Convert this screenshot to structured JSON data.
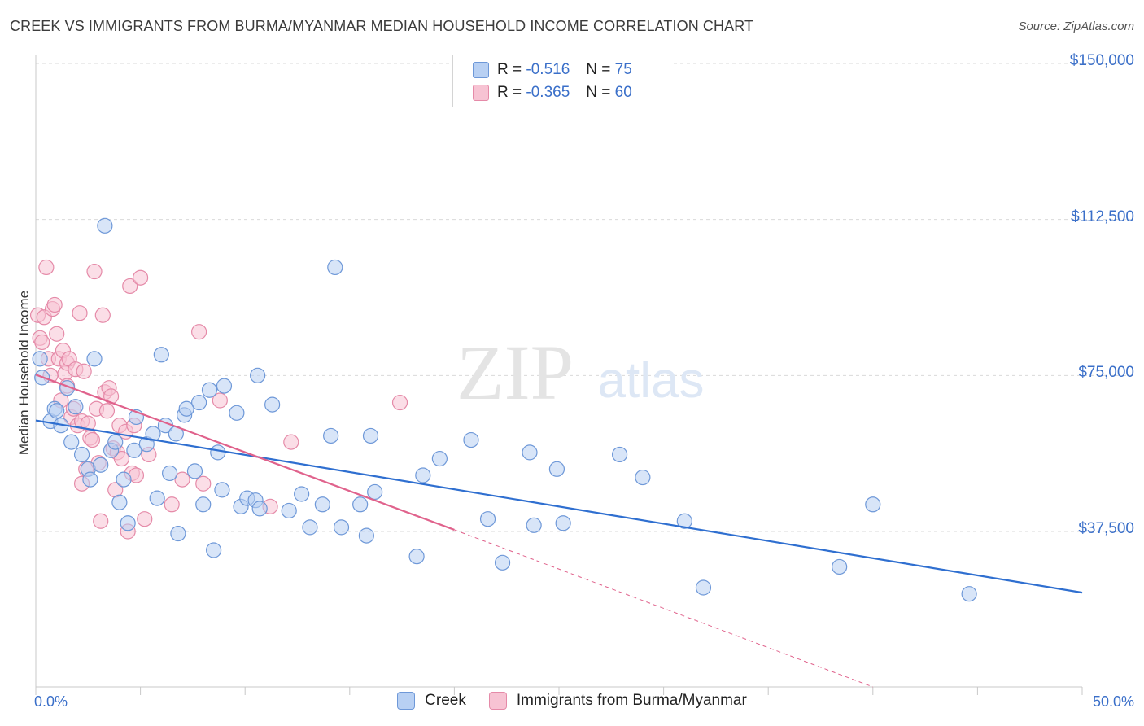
{
  "header": {
    "title": "CREEK VS IMMIGRANTS FROM BURMA/MYANMAR MEDIAN HOUSEHOLD INCOME CORRELATION CHART",
    "source": "Source: ZipAtlas.com"
  },
  "watermark": {
    "zip": "ZIP",
    "atlas": "atlas"
  },
  "stats": {
    "rows": [
      {
        "r_label": "R =",
        "r_value": "-0.516",
        "n_label": "N =",
        "n_value": "75"
      },
      {
        "r_label": "R =",
        "r_value": "-0.365",
        "n_label": "N =",
        "n_value": "60"
      }
    ]
  },
  "legend": {
    "series_a": "Creek",
    "series_b": "Immigrants from Burma/Myanmar"
  },
  "colors": {
    "series_a_fill": "#b8d0f3",
    "series_a_stroke": "#6e98d8",
    "series_a_line": "#2f6fd0",
    "series_b_fill": "#f7c3d3",
    "series_b_stroke": "#e58aa8",
    "series_b_line": "#e0628c",
    "grid": "#d9d9d9",
    "axis_text": "#3a6fc9"
  },
  "chart_data": {
    "type": "scatter",
    "xlabel": "",
    "ylabel": "Median Household Income",
    "xlim": [
      0,
      50
    ],
    "ylim": [
      0,
      155000
    ],
    "x_tick_labels": [
      "0.0%",
      "50.0%"
    ],
    "y_ticks": [
      {
        "value": 37500,
        "label": "$37,500"
      },
      {
        "value": 75000,
        "label": "$75,000"
      },
      {
        "value": 112500,
        "label": "$112,500"
      },
      {
        "value": 150000,
        "label": "$150,000"
      }
    ],
    "grid": true,
    "legend_position": "bottom",
    "series": [
      {
        "name": "Creek",
        "trend": {
          "x": [
            0,
            50
          ],
          "y": [
            64200,
            22800
          ]
        },
        "points": [
          [
            0.2,
            79000
          ],
          [
            0.3,
            74500
          ],
          [
            0.7,
            64000
          ],
          [
            0.9,
            67000
          ],
          [
            1.0,
            66500
          ],
          [
            1.2,
            63000
          ],
          [
            1.5,
            72000
          ],
          [
            1.7,
            59000
          ],
          [
            1.9,
            67500
          ],
          [
            2.2,
            56000
          ],
          [
            2.5,
            52500
          ],
          [
            2.6,
            50000
          ],
          [
            2.8,
            79000
          ],
          [
            3.1,
            53500
          ],
          [
            3.3,
            111000
          ],
          [
            3.6,
            57000
          ],
          [
            3.8,
            59000
          ],
          [
            4.0,
            44500
          ],
          [
            4.2,
            50000
          ],
          [
            4.4,
            39500
          ],
          [
            4.7,
            57000
          ],
          [
            4.8,
            65000
          ],
          [
            5.3,
            58500
          ],
          [
            5.6,
            61000
          ],
          [
            5.8,
            45500
          ],
          [
            6.0,
            80000
          ],
          [
            6.2,
            63000
          ],
          [
            6.4,
            51500
          ],
          [
            6.7,
            61000
          ],
          [
            6.8,
            37000
          ],
          [
            7.1,
            65500
          ],
          [
            7.2,
            67000
          ],
          [
            7.6,
            52000
          ],
          [
            7.8,
            68500
          ],
          [
            8.0,
            44000
          ],
          [
            8.3,
            71500
          ],
          [
            8.5,
            33000
          ],
          [
            8.7,
            56500
          ],
          [
            8.9,
            47500
          ],
          [
            9.0,
            72500
          ],
          [
            9.6,
            66000
          ],
          [
            9.8,
            43500
          ],
          [
            10.1,
            45500
          ],
          [
            10.5,
            45000
          ],
          [
            10.6,
            75000
          ],
          [
            10.7,
            43000
          ],
          [
            11.3,
            68000
          ],
          [
            12.1,
            42500
          ],
          [
            12.7,
            46500
          ],
          [
            13.1,
            38500
          ],
          [
            13.7,
            44000
          ],
          [
            14.1,
            60500
          ],
          [
            14.3,
            101000
          ],
          [
            14.6,
            38500
          ],
          [
            15.5,
            44000
          ],
          [
            15.8,
            36500
          ],
          [
            16.0,
            60500
          ],
          [
            16.2,
            47000
          ],
          [
            18.2,
            31500
          ],
          [
            18.5,
            51000
          ],
          [
            19.3,
            55000
          ],
          [
            20.8,
            59500
          ],
          [
            21.6,
            40500
          ],
          [
            22.3,
            30000
          ],
          [
            23.6,
            56500
          ],
          [
            23.8,
            39000
          ],
          [
            24.9,
            52500
          ],
          [
            25.2,
            39500
          ],
          [
            27.9,
            56000
          ],
          [
            29.0,
            50500
          ],
          [
            31.0,
            40000
          ],
          [
            31.9,
            24000
          ],
          [
            38.4,
            29000
          ],
          [
            40.0,
            44000
          ],
          [
            44.6,
            22500
          ]
        ]
      },
      {
        "name": "Immigrants from Burma/Myanmar",
        "trend": {
          "x": [
            0,
            20
          ],
          "y": [
            75200,
            37900
          ]
        },
        "trend_dashed": {
          "x": [
            20,
            40
          ],
          "y": [
            37900,
            0
          ]
        },
        "points": [
          [
            0.1,
            89500
          ],
          [
            0.2,
            84000
          ],
          [
            0.3,
            83000
          ],
          [
            0.4,
            89000
          ],
          [
            0.5,
            101000
          ],
          [
            0.6,
            79000
          ],
          [
            0.7,
            75000
          ],
          [
            0.8,
            91000
          ],
          [
            0.9,
            92000
          ],
          [
            1.0,
            85000
          ],
          [
            1.1,
            79000
          ],
          [
            1.2,
            69000
          ],
          [
            1.3,
            81000
          ],
          [
            1.4,
            75500
          ],
          [
            1.5,
            78000
          ],
          [
            1.6,
            79000
          ],
          [
            1.7,
            65000
          ],
          [
            1.8,
            67000
          ],
          [
            1.9,
            76500
          ],
          [
            2.0,
            63000
          ],
          [
            2.1,
            90000
          ],
          [
            2.2,
            64000
          ],
          [
            2.3,
            76000
          ],
          [
            2.4,
            52500
          ],
          [
            2.5,
            63500
          ],
          [
            2.6,
            60000
          ],
          [
            2.7,
            59500
          ],
          [
            2.8,
            100000
          ],
          [
            2.9,
            67000
          ],
          [
            3.0,
            54000
          ],
          [
            3.1,
            40000
          ],
          [
            3.2,
            89500
          ],
          [
            3.3,
            71000
          ],
          [
            3.4,
            66500
          ],
          [
            3.5,
            72000
          ],
          [
            3.6,
            70000
          ],
          [
            3.7,
            57500
          ],
          [
            3.8,
            47500
          ],
          [
            3.9,
            56500
          ],
          [
            4.0,
            63000
          ],
          [
            4.1,
            55000
          ],
          [
            4.3,
            61500
          ],
          [
            4.4,
            37500
          ],
          [
            4.5,
            96500
          ],
          [
            4.6,
            51500
          ],
          [
            4.7,
            63000
          ],
          [
            4.8,
            51000
          ],
          [
            5.0,
            98500
          ],
          [
            5.2,
            40500
          ],
          [
            5.4,
            56000
          ],
          [
            2.2,
            49000
          ],
          [
            6.5,
            44000
          ],
          [
            7.0,
            50000
          ],
          [
            7.8,
            85500
          ],
          [
            8.0,
            49000
          ],
          [
            8.8,
            69000
          ],
          [
            11.2,
            43500
          ],
          [
            12.2,
            59000
          ],
          [
            17.4,
            68500
          ],
          [
            1.5,
            72500
          ]
        ]
      }
    ]
  }
}
